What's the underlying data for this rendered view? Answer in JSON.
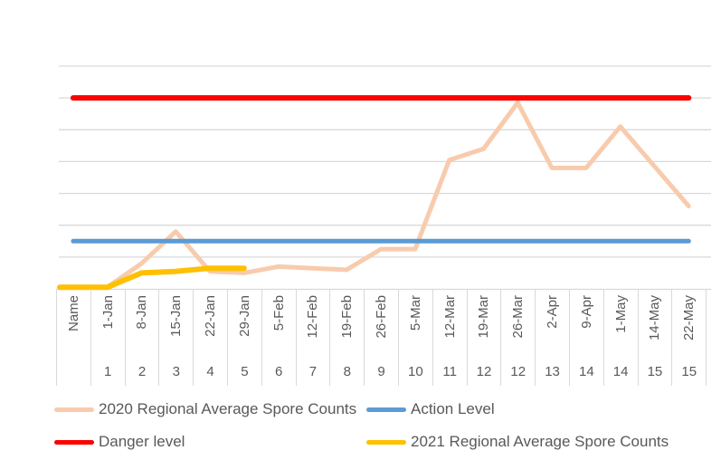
{
  "chart_data": {
    "type": "line",
    "title": "",
    "categories": [
      "Name",
      "1-Jan",
      "8-Jan",
      "15-Jan",
      "22-Jan",
      "29-Jan",
      "5-Feb",
      "12-Feb",
      "19-Feb",
      "26-Feb",
      "5-Mar",
      "12-Mar",
      "19-Mar",
      "26-Mar",
      "2-Apr",
      "9-Apr",
      "1-May",
      "14-May",
      "22-May"
    ],
    "week_numbers": [
      "",
      "1",
      "2",
      "3",
      "4",
      "5",
      "6",
      "7",
      "8",
      "9",
      "10",
      "11",
      "12",
      "12",
      "13",
      "14",
      "14",
      "15",
      "15"
    ],
    "series": [
      {
        "name": "2020 Regional Average Spore Counts",
        "color": "#F8CBAD",
        "extend_left": true,
        "values": [
          0.05,
          0.05,
          0.8,
          1.8,
          0.55,
          0.5,
          0.7,
          0.65,
          0.6,
          1.25,
          1.25,
          4.05,
          4.4,
          5.85,
          3.8,
          3.8,
          5.1,
          3.85,
          2.6
        ]
      },
      {
        "name": "Action Level",
        "color": "#5B9BD5",
        "extend_left": false,
        "values": [
          1.5,
          1.5,
          1.5,
          1.5,
          1.5,
          1.5,
          1.5,
          1.5,
          1.5,
          1.5,
          1.5,
          1.5,
          1.5,
          1.5,
          1.5,
          1.5,
          1.5,
          1.5,
          1.5
        ]
      },
      {
        "name": "Danger level",
        "color": "#FF0000",
        "extend_left": false,
        "values": [
          6,
          6,
          6,
          6,
          6,
          6,
          6,
          6,
          6,
          6,
          6,
          6,
          6,
          6,
          6,
          6,
          6,
          6,
          6
        ]
      },
      {
        "name": "2021 Regional Average Spore Counts",
        "color": "#FFC000",
        "extend_left": true,
        "values": [
          0.05,
          0.05,
          0.5,
          0.55,
          0.65,
          0.65
        ]
      }
    ],
    "ylim": [
      0,
      7
    ],
    "y_axis": {
      "labels_visible": false,
      "gridline_step": 1
    },
    "grid": "horizontal",
    "legend_position": "bottom"
  },
  "colors": {
    "gridline": "#D9D9D9",
    "axis_text": "#595959",
    "background": "#FFFFFF"
  }
}
